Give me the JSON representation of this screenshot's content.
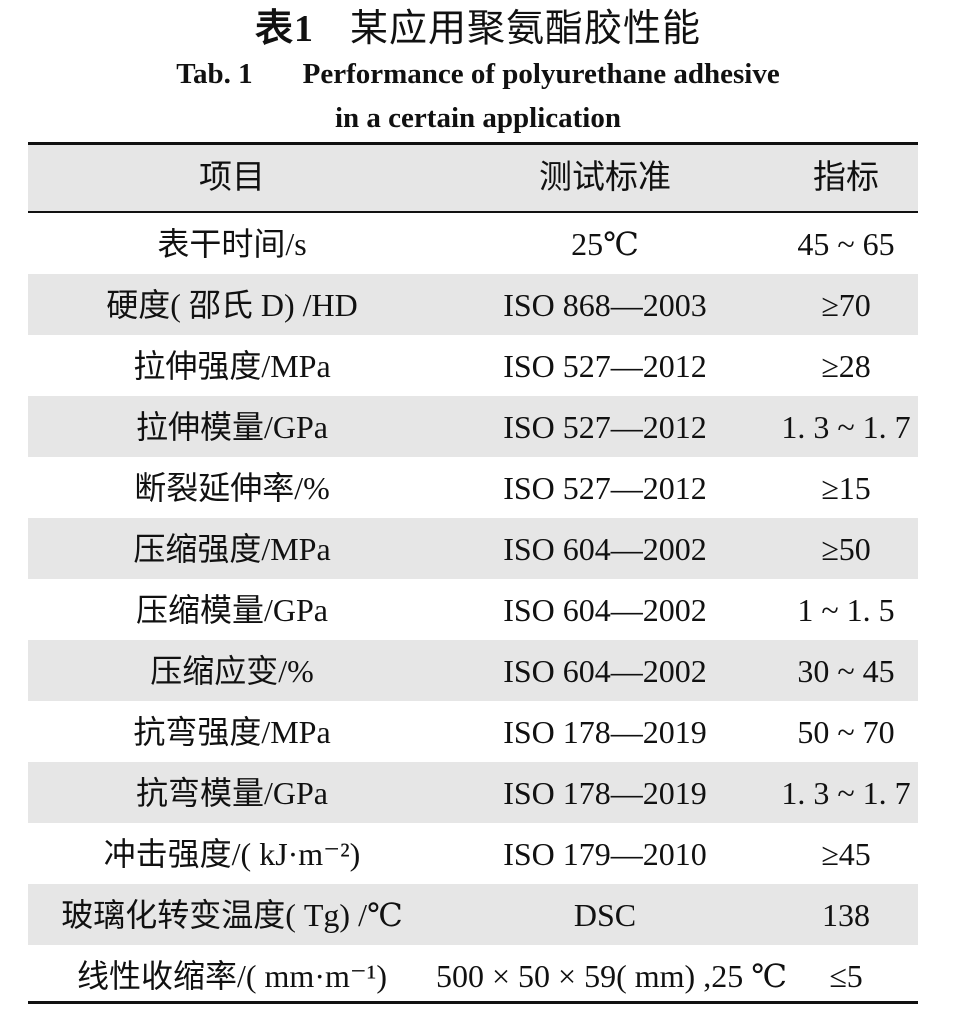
{
  "title": {
    "cn_label": "表",
    "cn_number": "1",
    "cn_text": "某应用聚氨酯胶性能",
    "en_label": "Tab. 1",
    "en_line1": "Performance of polyurethane adhesive",
    "en_line2": "in a certain application"
  },
  "table": {
    "headers": [
      "项目",
      "测试标准",
      "指标"
    ],
    "rows": [
      {
        "item": "表干时间/s",
        "standard": "25℃",
        "value": "45 ~ 65"
      },
      {
        "item": "硬度( 邵氏 D) /HD",
        "standard": "ISO 868—2003",
        "value": "≥70"
      },
      {
        "item": "拉伸强度/MPa",
        "standard": "ISO 527—2012",
        "value": "≥28"
      },
      {
        "item": "拉伸模量/GPa",
        "standard": "ISO 527—2012",
        "value": "1. 3 ~ 1. 7"
      },
      {
        "item": "断裂延伸率/%",
        "standard": "ISO 527—2012",
        "value": "≥15"
      },
      {
        "item": "压缩强度/MPa",
        "standard": "ISO 604—2002",
        "value": "≥50"
      },
      {
        "item": "压缩模量/GPa",
        "standard": "ISO 604—2002",
        "value": "1 ~ 1. 5"
      },
      {
        "item": "压缩应变/%",
        "standard": "ISO 604—2002",
        "value": "30 ~ 45"
      },
      {
        "item": "抗弯强度/MPa",
        "standard": "ISO 178—2019",
        "value": "50 ~ 70"
      },
      {
        "item": "抗弯模量/GPa",
        "standard": "ISO 178—2019",
        "value": "1. 3 ~ 1. 7"
      },
      {
        "item": "冲击强度/( kJ·m⁻²)",
        "standard": "ISO 179—2010",
        "value": "≥45"
      },
      {
        "item": "玻璃化转变温度( Tg) /℃",
        "standard": "DSC",
        "value": "138"
      },
      {
        "item": "线性收缩率/( mm·m⁻¹)",
        "standard": "500 × 50 × 59( mm) ,25 ℃",
        "value": "≤5"
      }
    ]
  }
}
